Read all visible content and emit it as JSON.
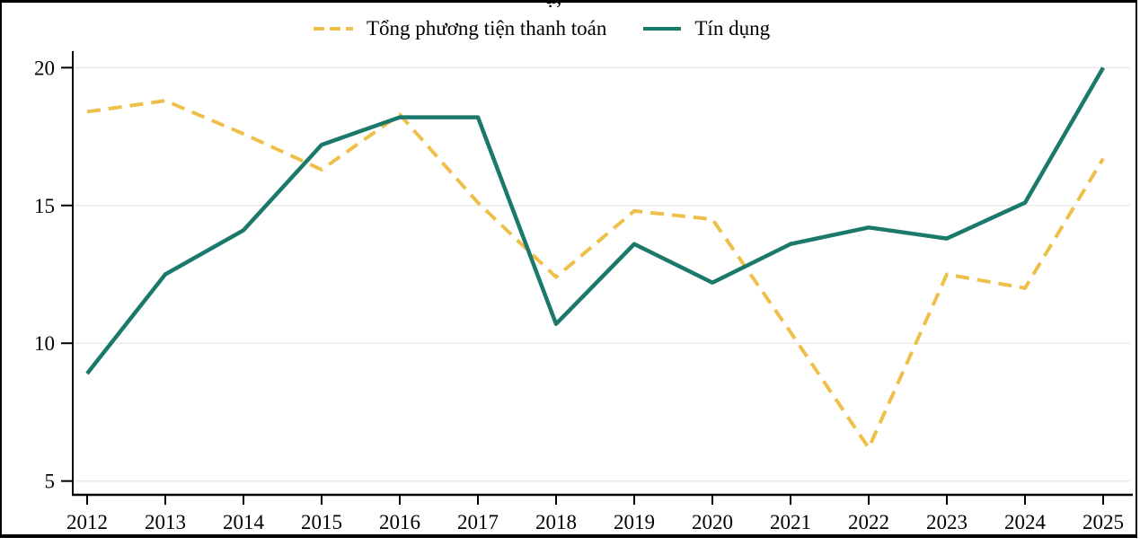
{
  "figure": {
    "title_remnant": "ụ,"
  },
  "chart_data": {
    "type": "line",
    "title": "",
    "xlabel": "",
    "ylabel": "",
    "categories": [
      "2012",
      "2013",
      "2014",
      "2015",
      "2016",
      "2017",
      "2018",
      "2019",
      "2020",
      "2021",
      "2022",
      "2023",
      "2024",
      "2025"
    ],
    "series": [
      {
        "name": "Tổng phương tiện thanh toán",
        "color": "#EEC04A",
        "style": "dashed",
        "values": [
          18.4,
          18.8,
          17.6,
          16.3,
          18.3,
          15.1,
          12.4,
          14.8,
          14.5,
          10.4,
          6.2,
          12.5,
          12.0,
          16.7
        ]
      },
      {
        "name": "Tín dụng",
        "color": "#1B796B",
        "style": "solid",
        "values": [
          8.9,
          12.5,
          14.1,
          17.2,
          18.2,
          18.2,
          10.7,
          13.6,
          12.2,
          13.6,
          14.2,
          13.8,
          15.1,
          20.0
        ]
      }
    ],
    "y_ticks": [
      5,
      10,
      15,
      20
    ],
    "ylim": [
      4.5,
      20.5
    ],
    "grid": true,
    "legend_position": "top"
  }
}
